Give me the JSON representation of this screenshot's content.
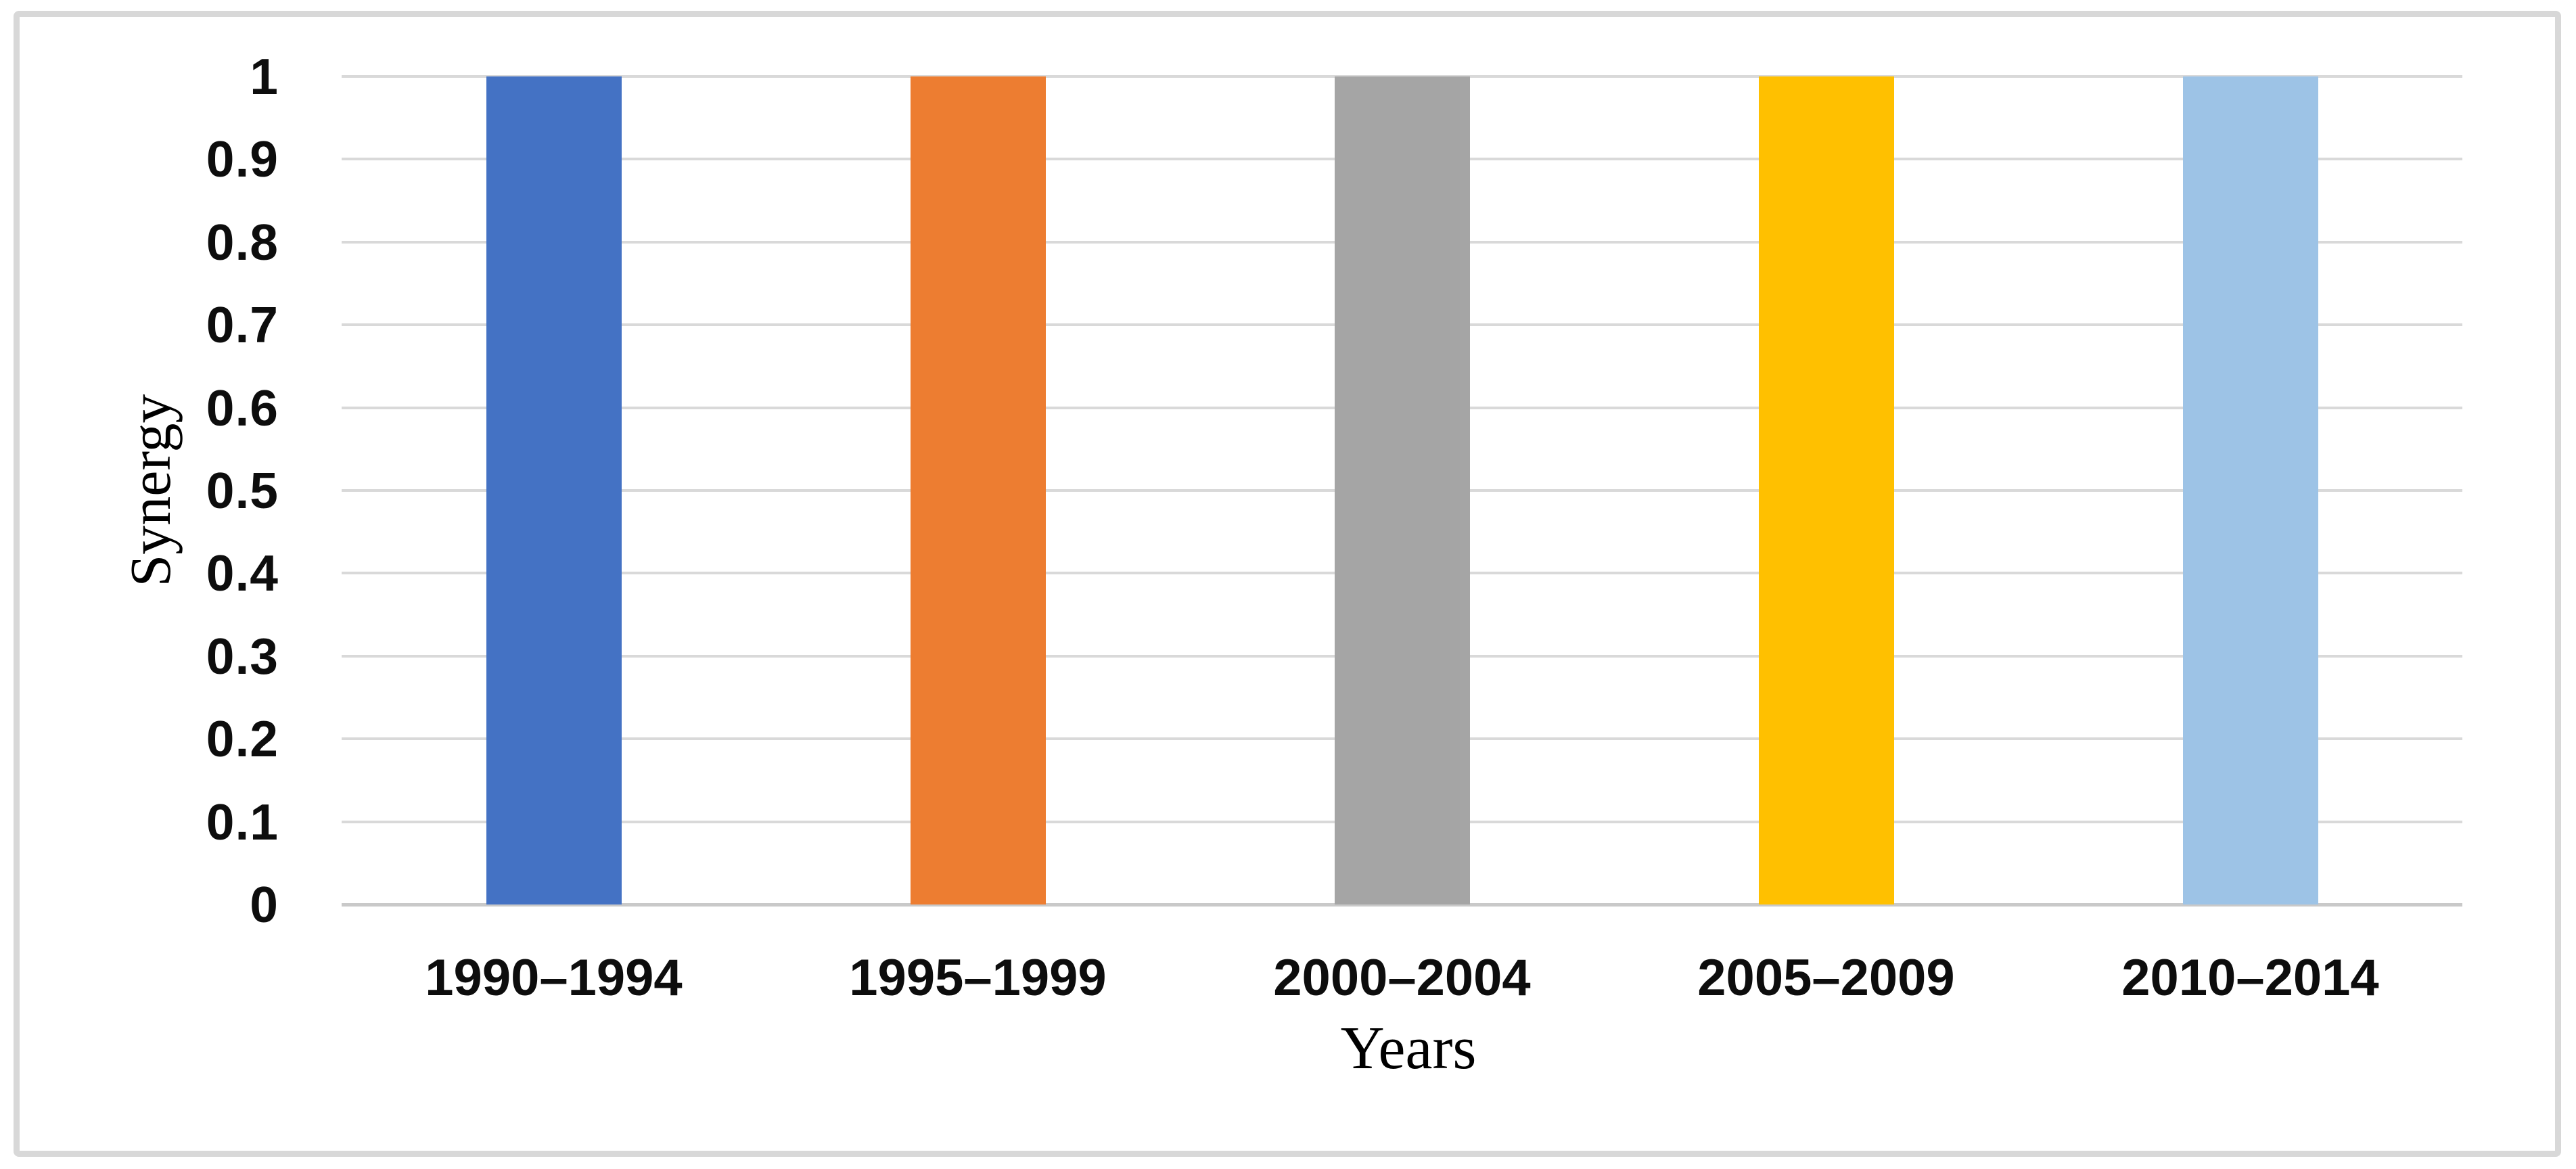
{
  "chart_data": {
    "type": "bar",
    "categories": [
      "1990–1994",
      "1995–1999",
      "2000–2004",
      "2005–2009",
      "2010–2014"
    ],
    "values": [
      1,
      1,
      1,
      1,
      1
    ],
    "bar_colors": [
      "#4472C4",
      "#ED7D31",
      "#A5A5A5",
      "#FFC000",
      "#9DC3E6"
    ],
    "title": "",
    "xlabel": "Years",
    "ylabel": "Synergy",
    "ylim": [
      0,
      1
    ],
    "yticks": [
      0,
      0.1,
      0.2,
      0.3,
      0.4,
      0.5,
      0.6,
      0.7,
      0.8,
      0.9,
      1
    ],
    "ytick_labels": [
      "0",
      "0.1",
      "0.2",
      "0.3",
      "0.4",
      "0.5",
      "0.6",
      "0.7",
      "0.8",
      "0.9",
      "1"
    ],
    "grid": "horizontal-gridlines-on",
    "legend_position": "none",
    "gridline_color": "#D9D9D9",
    "baseline_color": "#C9C9C9",
    "frame_border_color": "#D8D8D8"
  }
}
